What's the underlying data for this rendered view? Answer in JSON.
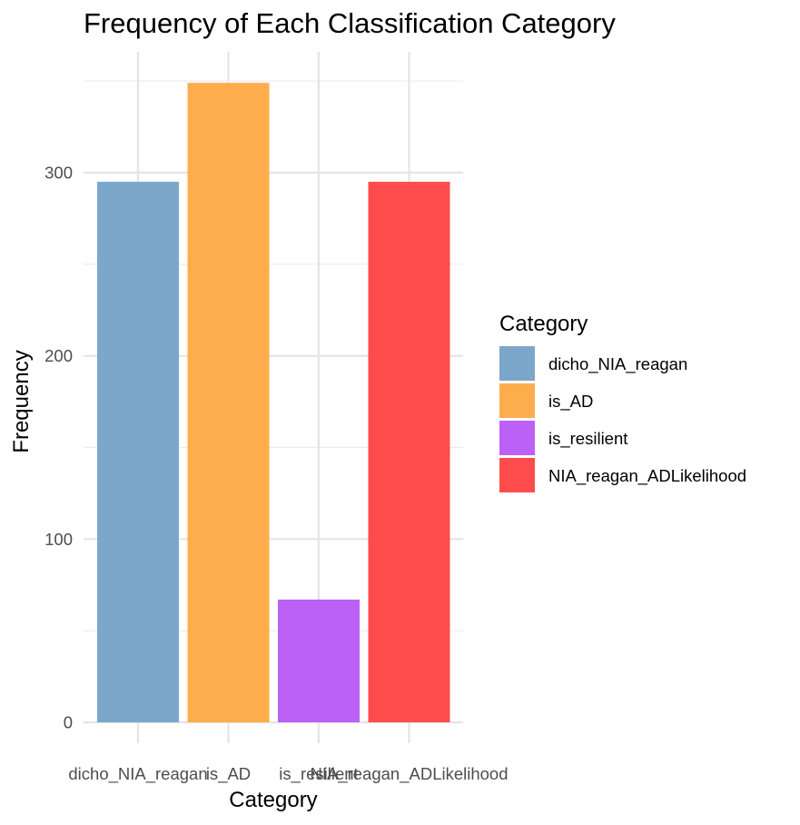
{
  "chart_data": {
    "type": "bar",
    "title": "Frequency of Each Classification Category",
    "xlabel": "Category",
    "ylabel": "Frequency",
    "categories": [
      "dicho_NIA_reagan",
      "is_AD",
      "is_resilient",
      "NIA_reagan_ADLikelihood"
    ],
    "values": [
      295,
      349,
      67,
      295
    ],
    "colors": [
      "#7ba7cb",
      "#fdad4b",
      "#bd60f5",
      "#fe4c4c"
    ],
    "ylim": [
      0,
      360
    ],
    "yticks": [
      0,
      100,
      200,
      300
    ],
    "grid": true,
    "legend": {
      "title": "Category",
      "placement": "right",
      "items": [
        "dicho_NIA_reagan",
        "is_AD",
        "is_resilient",
        "NIA_reagan_ADLikelihood"
      ]
    }
  }
}
